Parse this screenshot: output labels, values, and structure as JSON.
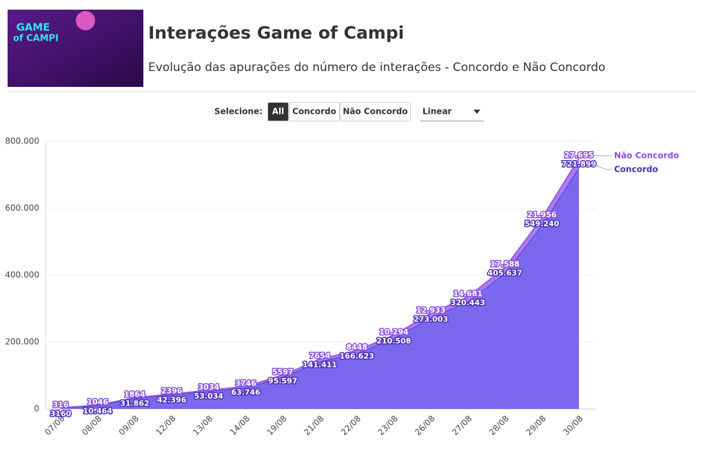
{
  "header": {
    "title": "Interações Game of Campi",
    "subtitle": "Evolução das apurações do número de interações - Concordo e Não Concordo",
    "logo_text": [
      "GAME",
      "of CAMPI"
    ]
  },
  "controls": {
    "label": "Selecione:",
    "buttons": [
      "All",
      "Concordo",
      "Não Concordo"
    ],
    "active": 0,
    "scale_dropdown": "Linear"
  },
  "chart_data": {
    "type": "stacked_area",
    "categories": [
      "07/08",
      "08/08",
      "09/08",
      "12/08",
      "13/08",
      "14/08",
      "19/08",
      "21/08",
      "22/08",
      "23/08",
      "26/08",
      "27/08",
      "28/08",
      "29/08",
      "30/08"
    ],
    "series": [
      {
        "name": "Concordo",
        "color": "#7b68ee",
        "line_color": "#4a2fb5",
        "values": [
          3160,
          10464,
          31862,
          42396,
          53034,
          63746,
          95597,
          141411,
          166623,
          210508,
          273003,
          320443,
          405637,
          549240,
          721899
        ],
        "value_labels": [
          "3160",
          "10.464",
          "31.862",
          "42.396",
          "53.034",
          "63.746",
          "95.597",
          "141.411",
          "166.623",
          "210.508",
          "273.003",
          "320.443",
          "405.637",
          "549.240",
          "721.899"
        ]
      },
      {
        "name": "Não Concordo",
        "color": "#a97cf2",
        "line_color": "#8a4fe0",
        "values": [
          316,
          1046,
          1864,
          2396,
          3034,
          3746,
          5597,
          7654,
          8448,
          10294,
          12933,
          14681,
          17588,
          21956,
          27695
        ],
        "value_labels": [
          "316",
          "1046",
          "1864",
          "2396",
          "3034",
          "3746",
          "5597",
          "7654",
          "8448",
          "10.294",
          "12.933",
          "14.681",
          "17.588",
          "21.956",
          "27.695"
        ]
      }
    ],
    "ylim": [
      0,
      800000
    ],
    "yticks": [
      0,
      {
        "value": 200000,
        "label": "200.000"
      },
      {
        "value": 400000,
        "label": "400.000"
      },
      {
        "value": 600000,
        "label": "600.000"
      },
      {
        "value": 800000,
        "label": "800.000"
      }
    ],
    "grid": true
  }
}
